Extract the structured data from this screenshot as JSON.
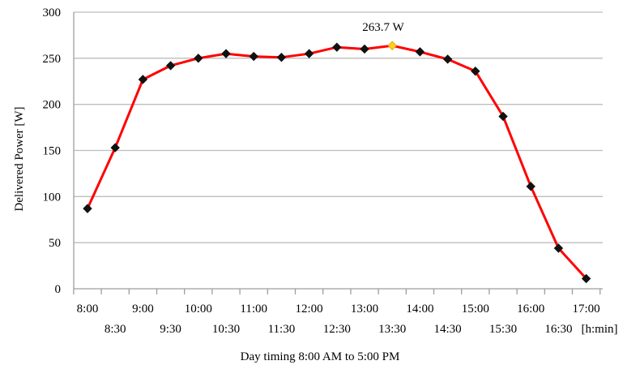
{
  "chart_data": {
    "type": "line",
    "title": "",
    "xlabel": "Day timing 8:00 AM to 5:00 PM",
    "ylabel": "Delivered Power [W]",
    "x_unit_label": "[h:min]",
    "ylim": [
      0,
      300
    ],
    "yticks": [
      0,
      50,
      100,
      150,
      200,
      250,
      300
    ],
    "grid": true,
    "x_labels_top": [
      "8:00",
      "9:00",
      "10:00",
      "11:00",
      "12:00",
      "13:00",
      "14:00",
      "15:00",
      "16:00",
      "17:00"
    ],
    "x_labels_bottom": [
      "8:30",
      "9:30",
      "10:30",
      "11:30",
      "12:30",
      "13:30",
      "14:30",
      "15:30",
      "16:30"
    ],
    "x": [
      "8:00",
      "8:30",
      "9:00",
      "9:30",
      "10:00",
      "10:30",
      "11:00",
      "11:30",
      "12:00",
      "12:30",
      "13:00",
      "13:30",
      "14:00",
      "14:30",
      "15:00",
      "15:30",
      "16:00",
      "16:30",
      "17:00"
    ],
    "series": [
      {
        "values": [
          87,
          153,
          227,
          242,
          250,
          255,
          252,
          251,
          255,
          262,
          260,
          263.7,
          257,
          249,
          236,
          187,
          111,
          44,
          11
        ],
        "color": "#ff0000",
        "marker_color": "#111111"
      }
    ],
    "peak_index": 11,
    "peak_marker_color": "#ffd21f",
    "annotations": [
      {
        "text": "263.7 W"
      }
    ],
    "colors": {
      "grid": "#bdbdbd",
      "axis": "#9e9e9e"
    }
  }
}
